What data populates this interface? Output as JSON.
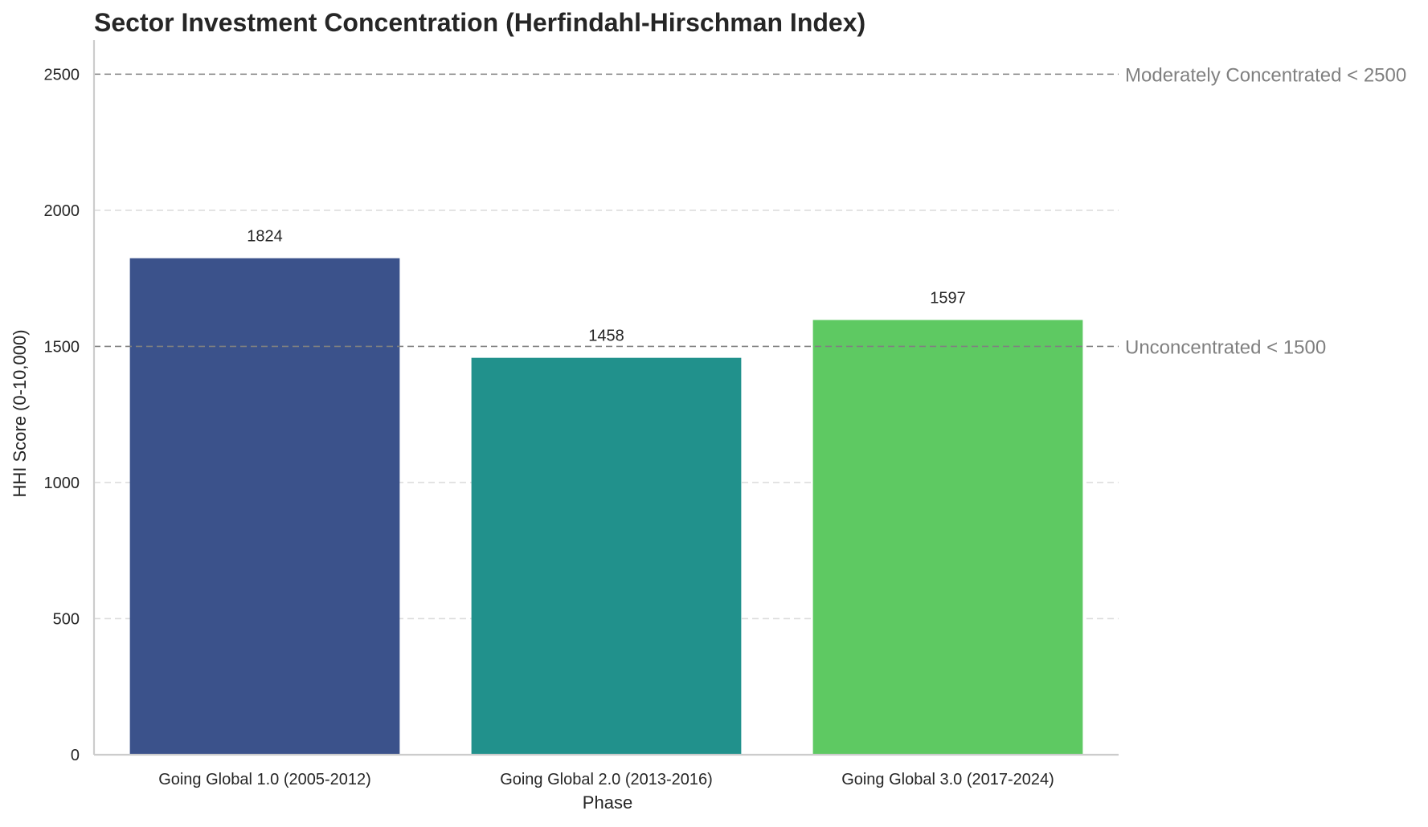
{
  "chart_data": {
    "type": "bar",
    "title": "Sector Investment Concentration (Herfindahl-Hirschman Index)",
    "xlabel": "Phase",
    "ylabel": "HHI Score (0-10,000)",
    "categories": [
      "Going Global 1.0 (2005-2012)",
      "Going Global 2.0 (2013-2016)",
      "Going Global 3.0 (2017-2024)"
    ],
    "values": [
      1824,
      1458,
      1597
    ],
    "data_labels": [
      "1824",
      "1458",
      "1597"
    ],
    "bar_colors": [
      "#3b528b",
      "#21918c",
      "#5ec962"
    ],
    "ylim": [
      0,
      2625
    ],
    "yticks": [
      0,
      500,
      1000,
      1500,
      2000,
      2500
    ],
    "ytick_labels": [
      "0",
      "500",
      "1000",
      "1500",
      "2000",
      "2500"
    ],
    "grid": "y-dashed",
    "reference_lines": [
      {
        "value": 1500,
        "label": "Unconcentrated < 1500",
        "color": "#808080"
      },
      {
        "value": 2500,
        "label": "Moderately Concentrated < 2500",
        "color": "#808080"
      }
    ]
  }
}
